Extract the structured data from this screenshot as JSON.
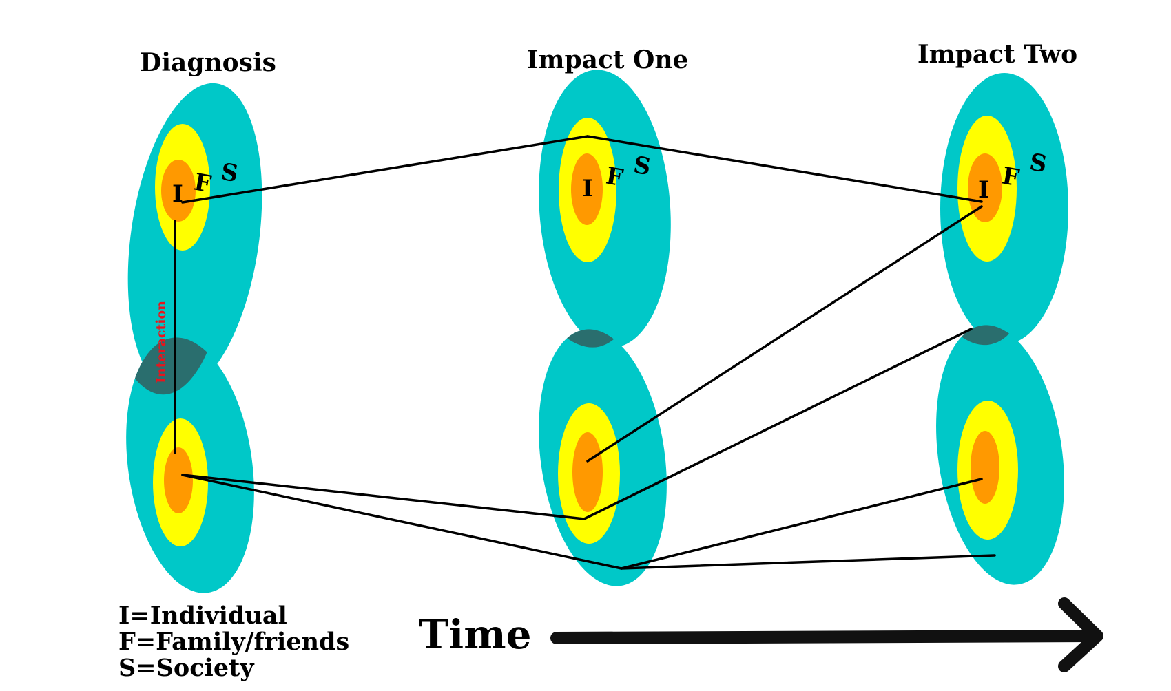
{
  "titles": {
    "diagnosis": "Diagnosis",
    "impact_one": "Impact One",
    "impact_two": "Impact Two"
  },
  "letters": {
    "individual": "I",
    "family": "F",
    "society": "S"
  },
  "interaction_label": "Interaction",
  "legend": [
    "I=Individual",
    "F=Family/friends",
    "S=Society"
  ],
  "time_label": "Time",
  "colors": {
    "society": "#00c8c8",
    "family": "#ffff00",
    "individual": "#ff9900",
    "overlap": "#2a6e6e",
    "interaction_text": "#e8141c",
    "lines": "#000000"
  }
}
